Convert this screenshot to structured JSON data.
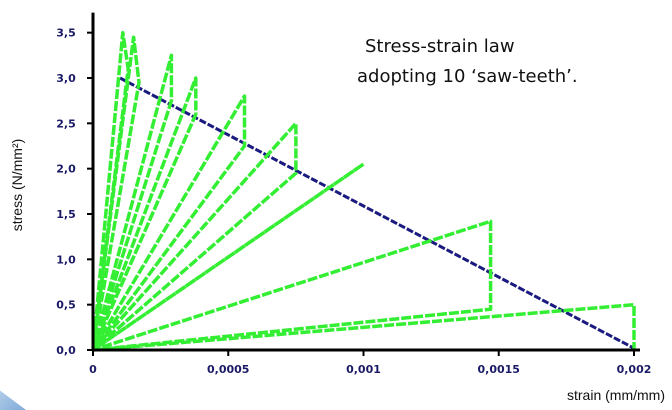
{
  "chart_data": {
    "type": "line",
    "xlabel": "strain (mm/mm)",
    "ylabel": "stress (N/mm²)",
    "annotation": [
      "Stress-strain law",
      "adopting 10 ‘saw-teeth’."
    ],
    "xlim": [
      0,
      0.002
    ],
    "ylim": [
      0,
      3.0
    ],
    "x_ticks": [
      {
        "value": 0,
        "label": "0"
      },
      {
        "value": 0.0005,
        "label": "0,0005"
      },
      {
        "value": 0.001,
        "label": "0,001"
      },
      {
        "value": 0.0015,
        "label": "0,0015"
      },
      {
        "value": 0.002,
        "label": "0,002"
      }
    ],
    "y_ticks": [
      {
        "value": 0,
        "label": "0,0"
      },
      {
        "value": 0.5,
        "label": "0,5"
      },
      {
        "value": 1.0,
        "label": "1,0"
      },
      {
        "value": 1.5,
        "label": "1,5"
      },
      {
        "value": 2.0,
        "label": "2,0"
      },
      {
        "value": 2.5,
        "label": "2,5"
      },
      {
        "value": 3.0,
        "label": "3,0"
      },
      {
        "value": 3.5,
        "label": "3,5"
      }
    ],
    "colors": {
      "envelope": "#1a1a80",
      "saw_teeth": "#33ee33",
      "axes": "#000000"
    },
    "series": [
      {
        "role": "envelope",
        "points": [
          [
            0.0001,
            3.0
          ],
          [
            0.002,
            0.02
          ]
        ]
      },
      {
        "role": "saw-teeth",
        "points": [
          [
            0,
            0
          ],
          [
            0.00011,
            3.5
          ],
          [
            0.00013,
            3.1
          ],
          [
            0,
            0
          ],
          [
            0.00015,
            3.45
          ],
          [
            0.00017,
            2.95
          ],
          [
            0,
            0
          ],
          [
            0.00029,
            3.25
          ],
          [
            0.00029,
            2.75
          ],
          [
            0,
            0
          ],
          [
            0.00038,
            3.0
          ],
          [
            0.00038,
            2.6
          ],
          [
            0,
            0
          ],
          [
            0.00056,
            2.8
          ],
          [
            0.00056,
            2.25
          ],
          [
            0,
            0
          ],
          [
            0.00075,
            2.5
          ],
          [
            0.00075,
            1.95
          ],
          [
            0,
            0
          ],
          [
            0.001,
            2.05
          ],
          [
            0,
            0
          ],
          [
            0.00147,
            1.42
          ],
          [
            0.00147,
            0.45
          ],
          [
            0,
            0
          ],
          [
            0.002,
            0.5
          ],
          [
            0.002,
            0.0
          ]
        ]
      }
    ]
  }
}
